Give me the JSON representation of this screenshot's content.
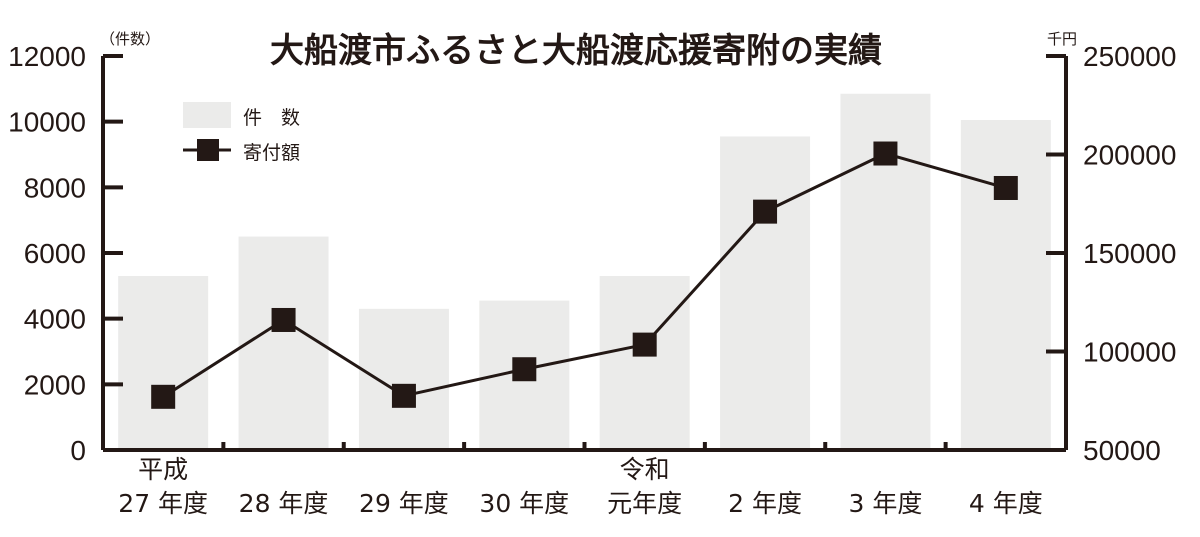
{
  "chart_data": {
    "type": "bar+line",
    "title": "大船渡市ふるさと大船渡応援寄附の実績",
    "categories": [
      {
        "line1": "平成",
        "line2": "27 年度"
      },
      {
        "line1": "",
        "line2": "28 年度"
      },
      {
        "line1": "",
        "line2": "29 年度"
      },
      {
        "line1": "",
        "line2": "30 年度"
      },
      {
        "line1": "令和",
        "line2": "元年度"
      },
      {
        "line1": "",
        "line2": "2 年度"
      },
      {
        "line1": "",
        "line2": "3 年度"
      },
      {
        "line1": "",
        "line2": "4 年度"
      }
    ],
    "left_axis": {
      "unit": "（件数）",
      "ylim": [
        0,
        12000
      ],
      "ticks": [
        "0",
        "2000",
        "4000",
        "6000",
        "8000",
        "10000",
        "12000"
      ],
      "tick_values": [
        0,
        2000,
        4000,
        6000,
        8000,
        10000,
        12000
      ]
    },
    "right_axis": {
      "unit": "千円",
      "ylim": [
        50000,
        250000
      ],
      "ticks": [
        "50000",
        "100000",
        "150000",
        "200000",
        "250000"
      ],
      "tick_values": [
        50000,
        100000,
        150000,
        200000,
        250000
      ]
    },
    "series": [
      {
        "name": "件　数",
        "type": "bar",
        "axis": "left",
        "color": "#ebebea",
        "values": [
          5300,
          6500,
          4300,
          4550,
          5300,
          9550,
          10850,
          10050
        ]
      },
      {
        "name": "寄付額",
        "type": "line",
        "axis": "right",
        "color": "#231815",
        "marker": "square",
        "values": [
          77000,
          116000,
          77500,
          91000,
          103500,
          171000,
          200500,
          183000
        ]
      }
    ],
    "legend_position": "top-left",
    "grid": false
  }
}
